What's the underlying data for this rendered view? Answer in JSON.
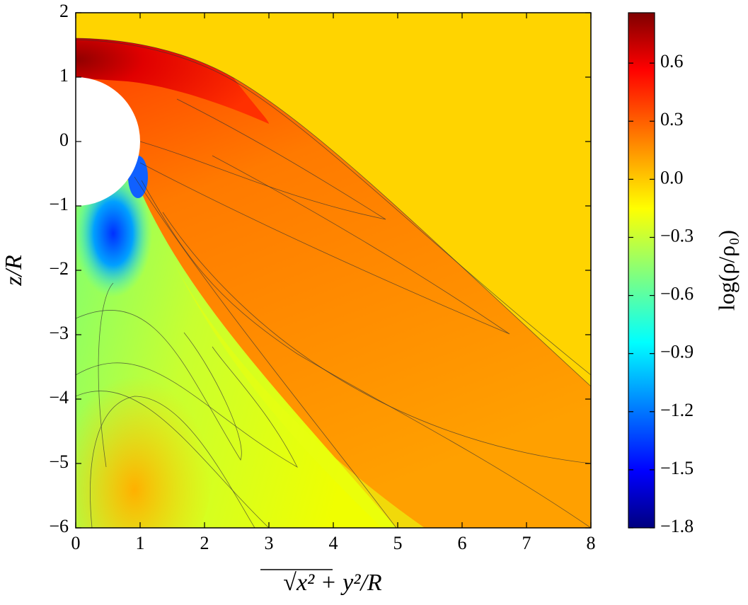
{
  "chart_data": {
    "type": "contour",
    "x_label": "√x² + y²/R",
    "y_label": "z/R",
    "colorbar_label": "log(ρ/ρ₀)",
    "xlim": [
      0,
      8
    ],
    "xticks": [
      0,
      1,
      2,
      3,
      4,
      5,
      6,
      7,
      8
    ],
    "ylim": [
      -6,
      2
    ],
    "yticks": [
      {
        "value": -6,
        "label": "−6"
      },
      {
        "value": -5,
        "label": "−5"
      },
      {
        "value": -4,
        "label": "−4"
      },
      {
        "value": -3,
        "label": "−3"
      },
      {
        "value": -2,
        "label": "−2"
      },
      {
        "value": -1,
        "label": "−1"
      },
      0,
      1,
      2
    ],
    "clim": [
      -1.8,
      0.86
    ],
    "cticks": [
      {
        "value": -1.8,
        "label": "−1.8"
      },
      {
        "value": -1.5,
        "label": "−1.5"
      },
      {
        "value": -1.2,
        "label": "−1.2"
      },
      {
        "value": -0.9,
        "label": "−0.9"
      },
      {
        "value": -0.6,
        "label": "−0.6"
      },
      {
        "value": -0.3,
        "label": "−0.3"
      },
      {
        "value": 0,
        "label": "0.0"
      },
      0.3,
      0.6
    ],
    "colormap": "jet"
  }
}
